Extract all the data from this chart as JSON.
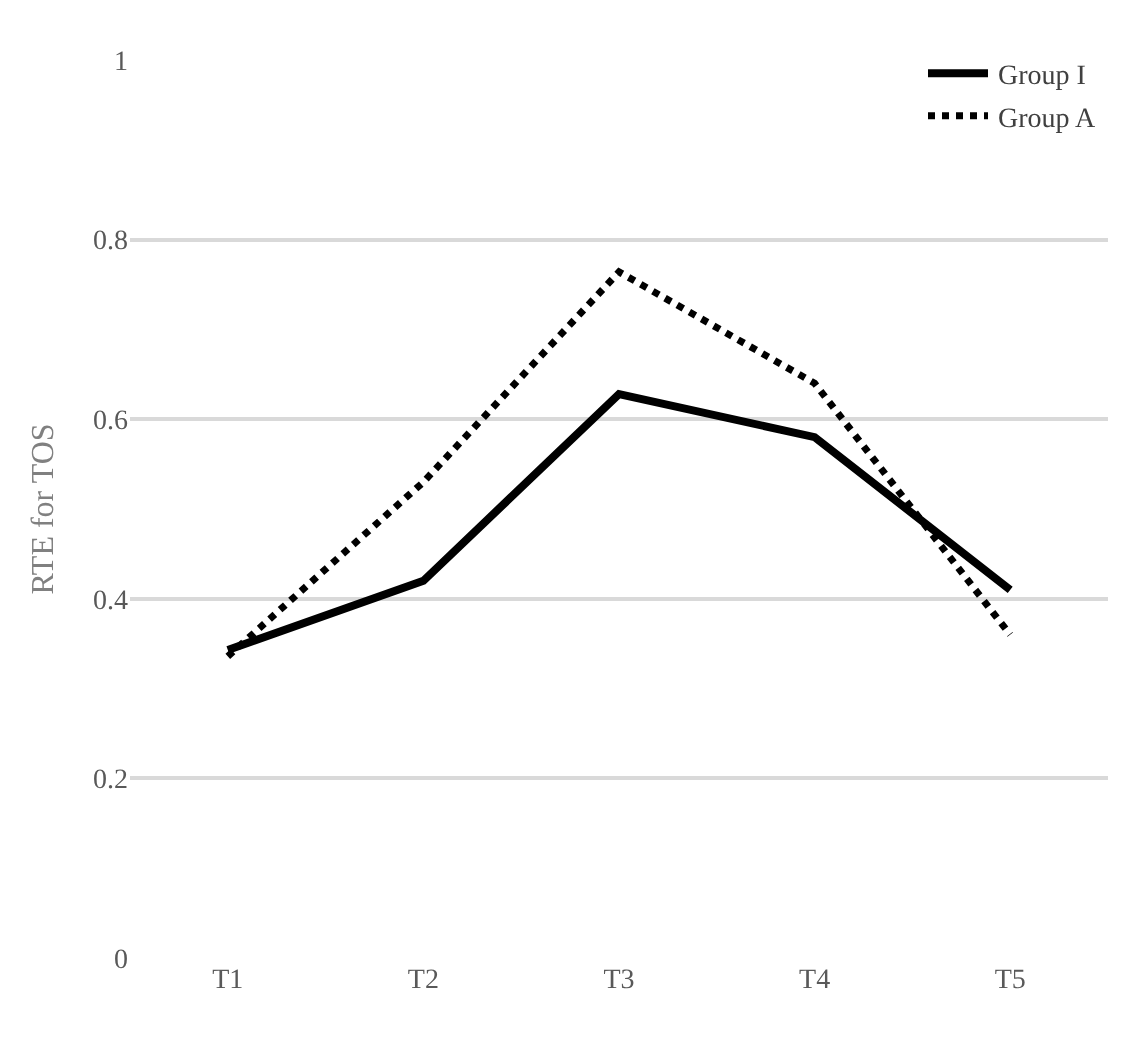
{
  "chart_data": {
    "type": "line",
    "ylabel": "RTE for TOS",
    "categories": [
      "T1",
      "T2",
      "T3",
      "T4",
      "T5"
    ],
    "series": [
      {
        "name": "Group I",
        "color": "#000000",
        "line_style": "solid",
        "values": [
          0.343,
          0.42,
          0.628,
          0.58,
          0.41
        ]
      },
      {
        "name": "Group A",
        "color": "#000000",
        "line_style": "dotted",
        "values": [
          0.336,
          0.53,
          0.764,
          0.64,
          0.36
        ]
      }
    ],
    "ylim": [
      0,
      1
    ],
    "yticks": [
      0,
      0.2,
      0.4,
      0.6,
      0.8,
      1
    ],
    "grid": "y",
    "legend": "top right",
    "marker": "none"
  }
}
